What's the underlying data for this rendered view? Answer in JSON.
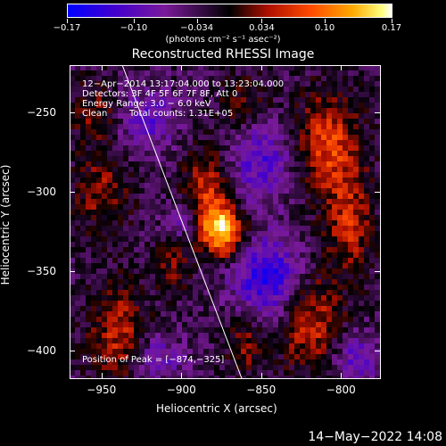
{
  "chart_data": {
    "type": "heatmap",
    "title": "Reconstructed RHESSI Image",
    "xlabel": "Heliocentric X (arcsec)",
    "ylabel": "Heliocentric Y (arcsec)",
    "xlim": [
      -970,
      -775
    ],
    "ylim": [
      -418,
      -220
    ],
    "x_ticks": [
      -950,
      -900,
      -850,
      -800
    ],
    "y_ticks": [
      -250,
      -300,
      -350,
      -400
    ],
    "x_tick_labels": [
      "−950",
      "−900",
      "−850",
      "−800"
    ],
    "y_tick_labels": [
      "−250",
      "−300",
      "−350",
      "−400"
    ],
    "colorbar": {
      "range": [
        -0.17,
        0.17
      ],
      "ticks": [
        -0.17,
        -0.1,
        -0.034,
        0.034,
        0.1,
        0.17
      ],
      "tick_labels": [
        "−0.17",
        "−0.10",
        "−0.034",
        "0.034",
        "0.10",
        "0.17"
      ],
      "unit_label": "(photons cm⁻² s⁻¹ asec⁻²)"
    },
    "peak": {
      "x": -874,
      "y": -325,
      "value": 0.17
    },
    "sources": [
      {
        "x": -874,
        "y": -325,
        "value": 0.17,
        "sx": 9,
        "sy": 11
      },
      {
        "x": -884,
        "y": -300,
        "value": 0.09,
        "sx": 10,
        "sy": 18
      },
      {
        "x": -808,
        "y": -270,
        "value": 0.1,
        "sx": 14,
        "sy": 22
      },
      {
        "x": -795,
        "y": -320,
        "value": 0.08,
        "sx": 10,
        "sy": 22
      },
      {
        "x": -820,
        "y": -380,
        "value": 0.09,
        "sx": 14,
        "sy": 22
      },
      {
        "x": -940,
        "y": -390,
        "value": 0.08,
        "sx": 12,
        "sy": 22
      },
      {
        "x": -950,
        "y": -300,
        "value": 0.06,
        "sx": 12,
        "sy": 18
      },
      {
        "x": -955,
        "y": -250,
        "value": 0.05,
        "sx": 10,
        "sy": 14
      },
      {
        "x": -860,
        "y": -245,
        "value": 0.05,
        "sx": 10,
        "sy": 12
      },
      {
        "x": -905,
        "y": -345,
        "value": 0.05,
        "sx": 8,
        "sy": 12
      },
      {
        "x": -860,
        "y": -395,
        "value": 0.06,
        "sx": 8,
        "sy": 14
      },
      {
        "x": -920,
        "y": -255,
        "value": -0.07,
        "sx": 12,
        "sy": 14
      },
      {
        "x": -850,
        "y": -280,
        "value": -0.08,
        "sx": 14,
        "sy": 18
      },
      {
        "x": -845,
        "y": -355,
        "value": -0.12,
        "sx": 16,
        "sy": 18
      },
      {
        "x": -790,
        "y": -405,
        "value": -0.07,
        "sx": 10,
        "sy": 12
      },
      {
        "x": -915,
        "y": -405,
        "value": -0.06,
        "sx": 12,
        "sy": 10
      },
      {
        "x": -900,
        "y": -320,
        "value": -0.05,
        "sx": 8,
        "sy": 10
      }
    ],
    "limb_line": [
      [
        -937,
        -220
      ],
      [
        -862,
        -418
      ]
    ],
    "annotations": {
      "time": "12−Apr−2014 13:17:04.000 to 13:23:04.000",
      "detectors": "Detectors: 3F 4F 5F 6F 7F 8F, Att 0",
      "energy": "Energy Range: 3.0 − 6.0 keV",
      "clean": "Clean",
      "counts": "Total counts: 1.31E+05",
      "peak_label": "Position of Peak = [−874,−325]"
    }
  },
  "footer": {
    "date": "14−May−2022 14:08"
  }
}
